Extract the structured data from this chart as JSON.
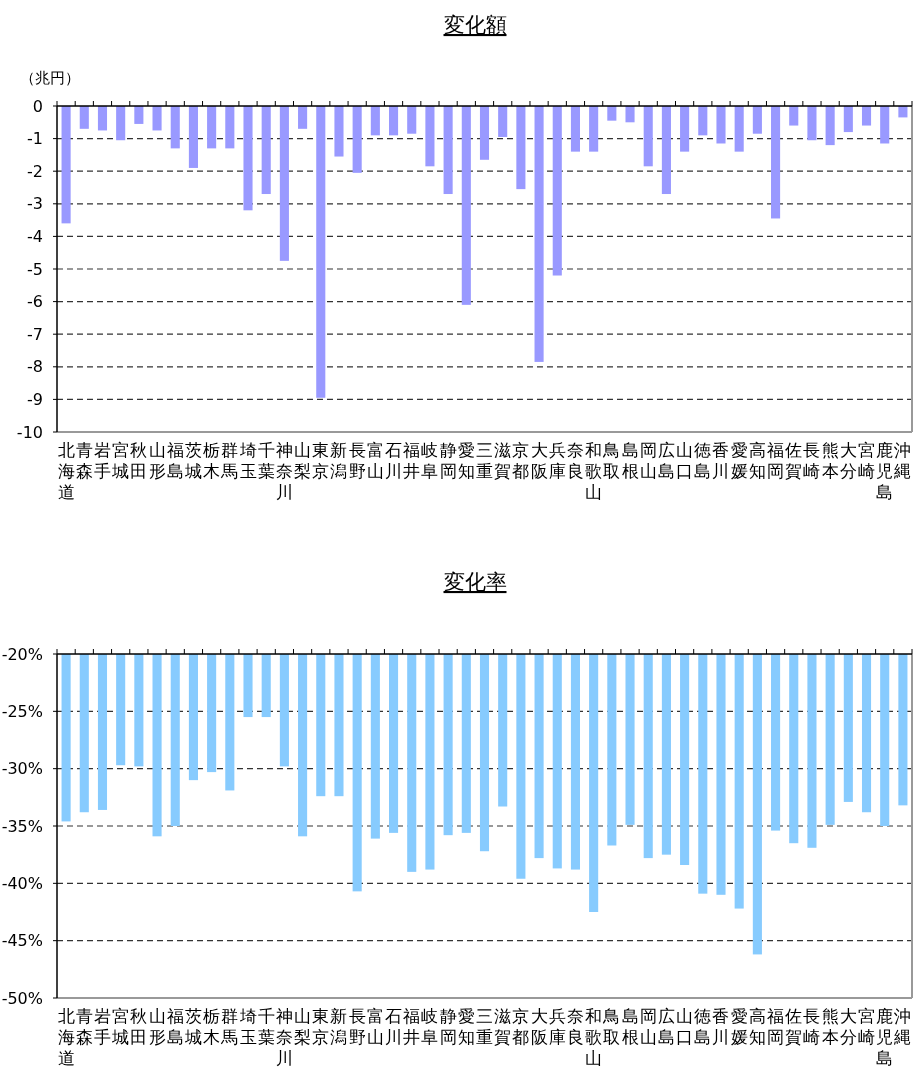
{
  "chart_data": [
    {
      "type": "bar",
      "title": "変化額",
      "ylabel": "（兆円）",
      "categories": [
        "北海道",
        "青森",
        "岩手",
        "宮城",
        "秋田",
        "山形",
        "福島",
        "茨城",
        "栃木",
        "群馬",
        "埼玉",
        "千葉",
        "神奈川",
        "山梨",
        "東京",
        "新潟",
        "長野",
        "富山",
        "石川",
        "福井",
        "岐阜",
        "静岡",
        "愛知",
        "三重",
        "滋賀",
        "京都",
        "大阪",
        "兵庫",
        "奈良",
        "和歌山",
        "鳥取",
        "島根",
        "岡山",
        "広島",
        "山口",
        "徳島",
        "香川",
        "愛媛",
        "高知",
        "福岡",
        "佐賀",
        "長崎",
        "熊本",
        "大分",
        "宮崎",
        "鹿児島",
        "沖縄"
      ],
      "values": [
        -3.6,
        -0.7,
        -0.75,
        -1.05,
        -0.55,
        -0.75,
        -1.3,
        -1.9,
        -1.3,
        -1.3,
        -3.2,
        -2.7,
        -4.75,
        -0.7,
        -8.95,
        -1.55,
        -2.05,
        -0.9,
        -0.9,
        -0.85,
        -1.85,
        -2.7,
        -6.1,
        -1.65,
        -0.95,
        -2.55,
        -7.85,
        -5.2,
        -1.4,
        -1.4,
        -0.45,
        -0.5,
        -1.85,
        -2.7,
        -1.4,
        -0.9,
        -1.15,
        -1.4,
        -0.85,
        -3.45,
        -0.6,
        -1.05,
        -1.2,
        -0.8,
        -0.6,
        -1.15,
        -0.35
      ],
      "color": "#9999ff",
      "ylim": [
        -10,
        0
      ],
      "yticks": [
        0,
        -1,
        -2,
        -3,
        -4,
        -5,
        -6,
        -7,
        -8,
        -9,
        -10
      ],
      "grid": "y"
    },
    {
      "type": "bar",
      "title": "変化率",
      "categories": [
        "北海道",
        "青森",
        "岩手",
        "宮城",
        "秋田",
        "山形",
        "福島",
        "茨城",
        "栃木",
        "群馬",
        "埼玉",
        "千葉",
        "神奈川",
        "山梨",
        "東京",
        "新潟",
        "長野",
        "富山",
        "石川",
        "福井",
        "岐阜",
        "静岡",
        "愛知",
        "三重",
        "滋賀",
        "京都",
        "大阪",
        "兵庫",
        "奈良",
        "和歌山",
        "鳥取",
        "島根",
        "岡山",
        "広島",
        "山口",
        "徳島",
        "香川",
        "愛媛",
        "高知",
        "福岡",
        "佐賀",
        "長崎",
        "熊本",
        "大分",
        "宮崎",
        "鹿児島",
        "沖縄"
      ],
      "values": [
        -34.6,
        -33.8,
        -33.6,
        -29.7,
        -29.8,
        -35.9,
        -35.0,
        -31.0,
        -30.3,
        -31.9,
        -25.5,
        -25.5,
        -29.8,
        -35.9,
        -32.4,
        -32.4,
        -40.7,
        -36.1,
        -35.6,
        -39.0,
        -38.8,
        -35.8,
        -35.6,
        -37.2,
        -33.3,
        -39.6,
        -37.8,
        -38.7,
        -38.8,
        -42.5,
        -36.7,
        -34.9,
        -37.8,
        -37.5,
        -38.4,
        -40.9,
        -41.0,
        -42.2,
        -46.2,
        -35.4,
        -36.5,
        -36.9,
        -34.9,
        -32.9,
        -33.8,
        -35.0,
        -33.2
      ],
      "color": "#87cbfe",
      "ylim": [
        -50,
        -20
      ],
      "yticks": [
        {
          "value": -20,
          "label": "-20%"
        },
        {
          "value": -25,
          "label": "-25%"
        },
        {
          "value": -30,
          "label": "-30%"
        },
        {
          "value": -35,
          "label": "-35%"
        },
        {
          "value": -40,
          "label": "-40%"
        },
        {
          "value": -45,
          "label": "-45%"
        },
        {
          "value": -50,
          "label": "-50%"
        }
      ],
      "grid": "y"
    }
  ]
}
